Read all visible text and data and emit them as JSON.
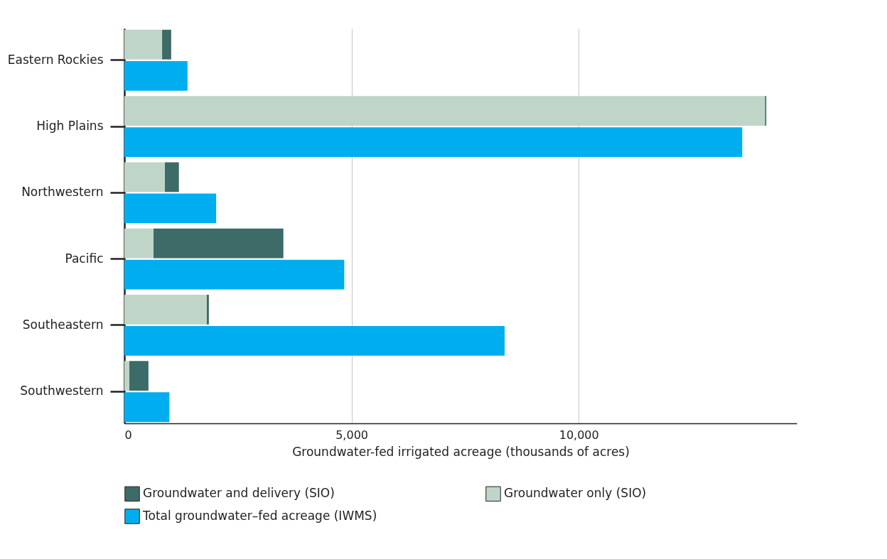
{
  "chart_data": {
    "type": "bar",
    "orientation": "horizontal",
    "xlabel": "Groundwater-fed irrigated acreage (thousands of acres)",
    "categories": [
      "Eastern Rockies",
      "High Plains",
      "Northwestern",
      "Pacific",
      "Southeastern",
      "Southwestern"
    ],
    "series": [
      {
        "name": "Groundwater and delivery (SIO)",
        "color": "#3d6b67",
        "values": [
          200,
          30,
          310,
          2860,
          50,
          420
        ],
        "base": [
          830,
          14100,
          890,
          640,
          1810,
          110
        ]
      },
      {
        "name": "Groundwater only (SIO)",
        "color": "#bfd5c8",
        "values": [
          830,
          14100,
          890,
          640,
          1810,
          110
        ]
      },
      {
        "name": "Total groundwater–fed acreage (IWMS)",
        "color": "#00aeef",
        "values": [
          1390,
          13600,
          2020,
          4840,
          8370,
          990
        ]
      }
    ],
    "xlim": [
      0,
      14800
    ],
    "xticks": [
      0,
      {
        "value": 5000,
        "label": "5,000"
      },
      {
        "value": 10000,
        "label": "10,000"
      }
    ],
    "grid": "x",
    "legend": "bottom"
  }
}
